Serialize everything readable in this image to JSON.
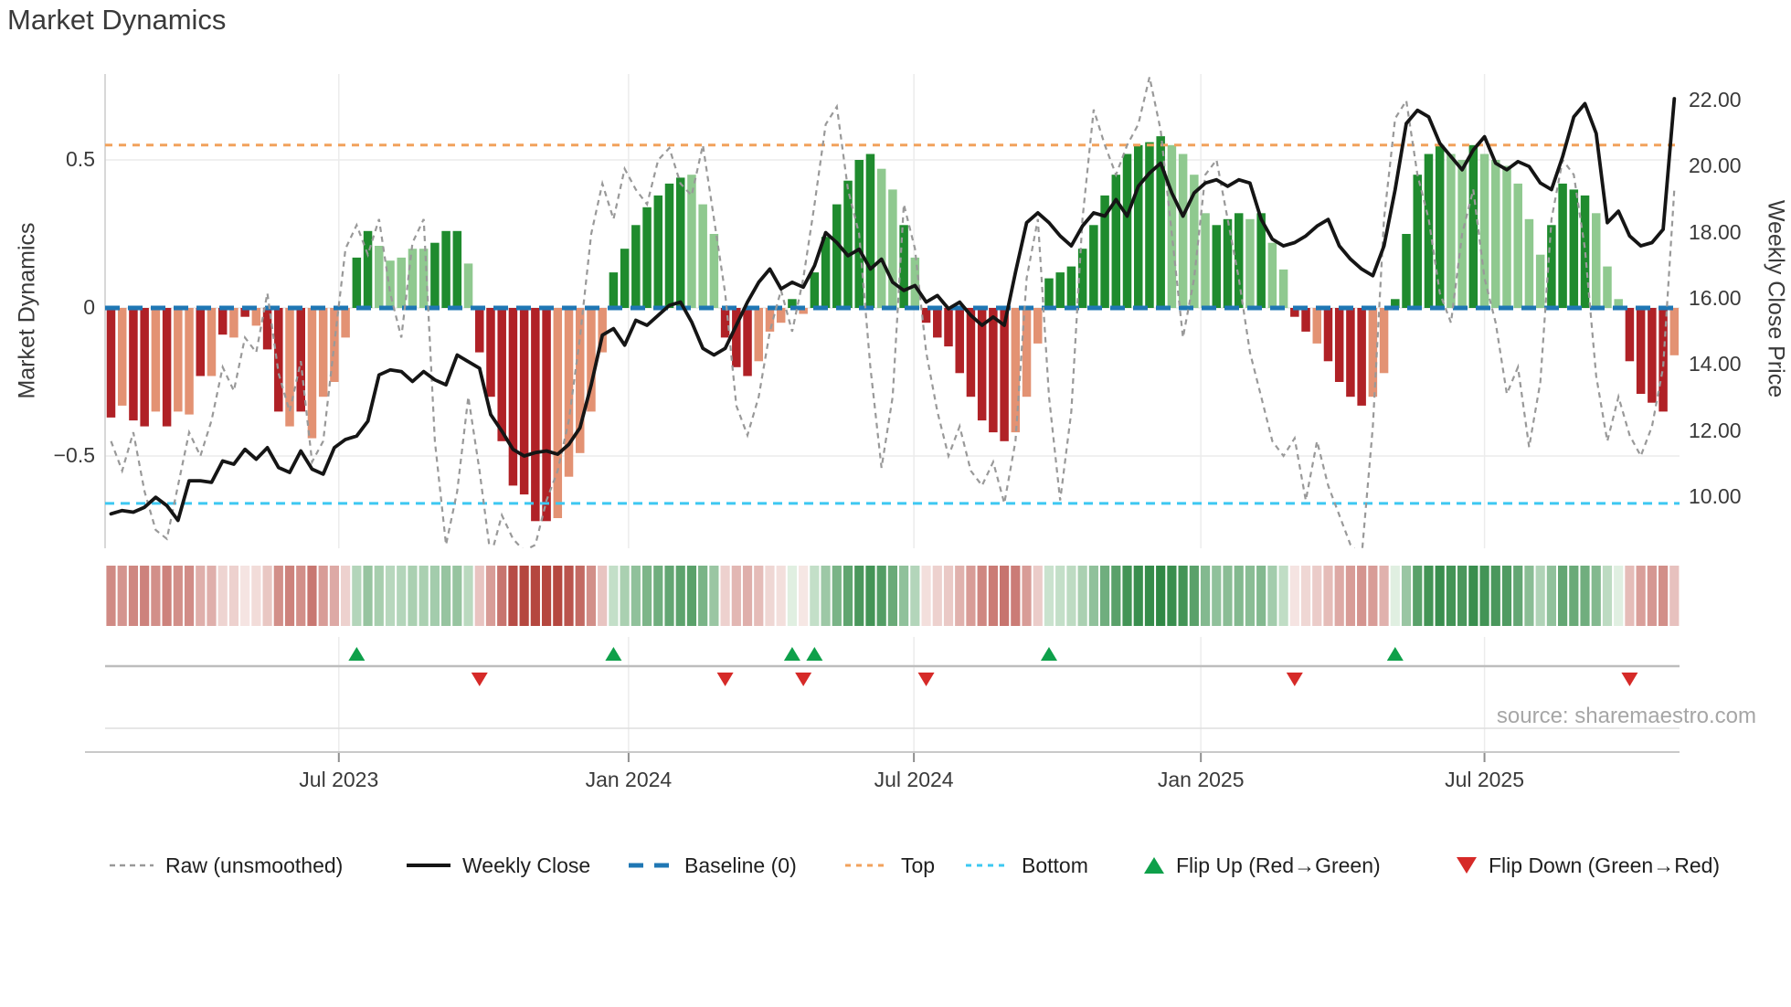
{
  "title": "Market Dynamics",
  "left_axis": {
    "label": "Market Dynamics",
    "ticks": [
      "0.5",
      "0",
      "−0.5"
    ]
  },
  "right_axis": {
    "label": "Weekly Close Price",
    "ticks": [
      "22.00",
      "20.00",
      "18.00",
      "16.00",
      "14.00",
      "12.00",
      "10.00"
    ]
  },
  "source": "source: sharemaestro.com",
  "colors": {
    "bar_pos_dark": "#1f8b2e",
    "bar_pos_light": "#8fc98f",
    "bar_neg_dark": "#b02126",
    "bar_neg_light": "#e39273",
    "baseline": "#1f77b4",
    "top_line": "#f2a25c",
    "bottom_line": "#3dc8f2",
    "raw_line": "#999999",
    "price_line": "#151515",
    "flip_up": "#0ea04a",
    "flip_down": "#d62a28",
    "grid": "#ececec",
    "spine": "#cccccc",
    "marker_rail": "#bdbdbd",
    "axis_line": "#c9c9c9"
  },
  "legend": [
    {
      "label": "Raw (unsmoothed)",
      "swatch": "dash-gray"
    },
    {
      "label": "Weekly Close",
      "swatch": "solid-black"
    },
    {
      "label": "Baseline (0)",
      "swatch": "dash-blue"
    },
    {
      "label": "Top",
      "swatch": "dot-orange"
    },
    {
      "label": "Bottom",
      "swatch": "dot-cyan"
    },
    {
      "label": "Flip Up (Red→Green)",
      "swatch": "tri-up"
    },
    {
      "label": "Flip Down (Green→Red)",
      "swatch": "tri-down"
    }
  ],
  "chart_data": {
    "type": "bar",
    "title": "Market Dynamics",
    "ylabel_left": "Market Dynamics",
    "ylabel_right": "Weekly Close Price",
    "ylim_left": [
      -0.79,
      0.79
    ],
    "ylim_right": [
      8.5,
      22.8
    ],
    "baseline": 0,
    "top_threshold": 0.55,
    "bottom_threshold": -0.66,
    "x_ticks": [
      {
        "label": "Jul 2023",
        "week": 20.4
      },
      {
        "label": "Jan 2024",
        "week": 46.35
      },
      {
        "label": "Jul 2024",
        "week": 71.9
      },
      {
        "label": "Jan 2025",
        "week": 97.6
      },
      {
        "label": "Jul 2025",
        "week": 123.0
      }
    ],
    "oscillator_values": [
      -0.37,
      -0.33,
      -0.38,
      -0.4,
      -0.35,
      -0.4,
      -0.35,
      -0.36,
      -0.23,
      -0.23,
      -0.09,
      -0.1,
      -0.03,
      -0.06,
      -0.14,
      -0.35,
      -0.4,
      -0.35,
      -0.44,
      -0.3,
      -0.25,
      -0.1,
      0.17,
      0.26,
      0.21,
      0.16,
      0.17,
      0.2,
      0.2,
      0.22,
      0.26,
      0.26,
      0.15,
      -0.15,
      -0.3,
      -0.45,
      -0.6,
      -0.63,
      -0.72,
      -0.72,
      -0.71,
      -0.57,
      -0.49,
      -0.35,
      -0.15,
      0.12,
      0.2,
      0.28,
      0.34,
      0.38,
      0.42,
      0.44,
      0.45,
      0.35,
      0.25,
      -0.1,
      -0.2,
      -0.23,
      -0.18,
      -0.08,
      -0.05,
      0.03,
      -0.02,
      0.12,
      0.24,
      0.35,
      0.43,
      0.5,
      0.52,
      0.47,
      0.4,
      0.28,
      0.17,
      -0.05,
      -0.1,
      -0.13,
      -0.22,
      -0.3,
      -0.38,
      -0.42,
      -0.45,
      -0.42,
      -0.3,
      -0.12,
      0.1,
      0.12,
      0.14,
      0.2,
      0.28,
      0.38,
      0.45,
      0.52,
      0.55,
      0.56,
      0.58,
      0.55,
      0.52,
      0.45,
      0.32,
      0.28,
      0.3,
      0.32,
      0.3,
      0.32,
      0.22,
      0.13,
      -0.03,
      -0.08,
      -0.12,
      -0.18,
      -0.25,
      -0.3,
      -0.33,
      -0.3,
      -0.22,
      0.03,
      0.25,
      0.45,
      0.52,
      0.55,
      0.52,
      0.5,
      0.55,
      0.52,
      0.5,
      0.48,
      0.42,
      0.3,
      0.18,
      0.28,
      0.42,
      0.4,
      0.38,
      0.32,
      0.14,
      0.03,
      -0.18,
      -0.29,
      -0.32,
      -0.35,
      -0.16
    ],
    "oscillator_shades": "dlddldlldldldlddldllllddllllldddldddddddllllldddddddllldddllldlddddddlldlddddddddllldddddddddddlllldddldllddlddddlldddddlldllllllddddlllddddl",
    "weekly_close": [
      9.5,
      9.6,
      9.55,
      9.7,
      10.0,
      9.75,
      9.3,
      10.5,
      10.5,
      10.45,
      11.1,
      11.0,
      11.45,
      11.15,
      11.5,
      10.9,
      10.75,
      11.4,
      10.85,
      10.7,
      11.5,
      11.75,
      11.85,
      12.3,
      13.7,
      13.85,
      13.8,
      13.5,
      13.8,
      13.55,
      13.4,
      14.3,
      14.1,
      13.9,
      12.5,
      12.0,
      11.45,
      11.25,
      11.35,
      11.4,
      11.3,
      11.6,
      12.1,
      13.4,
      14.9,
      15.1,
      14.6,
      15.35,
      15.2,
      15.5,
      15.8,
      15.9,
      15.3,
      14.5,
      14.3,
      14.5,
      15.2,
      15.9,
      16.5,
      16.9,
      16.3,
      16.5,
      16.35,
      17.0,
      18.0,
      17.7,
      17.3,
      17.5,
      16.9,
      17.2,
      16.5,
      16.25,
      16.4,
      15.9,
      16.1,
      15.7,
      15.9,
      15.5,
      15.2,
      15.45,
      15.2,
      16.8,
      18.3,
      18.6,
      18.3,
      17.9,
      17.6,
      18.2,
      18.6,
      18.5,
      19.0,
      18.5,
      19.4,
      19.8,
      20.1,
      19.2,
      18.5,
      19.2,
      19.5,
      19.6,
      19.4,
      19.6,
      19.5,
      18.4,
      17.8,
      17.6,
      17.7,
      17.9,
      18.2,
      18.4,
      17.6,
      17.2,
      16.9,
      16.7,
      17.6,
      19.3,
      21.3,
      21.7,
      21.5,
      20.7,
      20.3,
      19.9,
      20.5,
      20.9,
      20.1,
      19.9,
      20.15,
      20.0,
      19.5,
      19.3,
      20.3,
      21.5,
      21.9,
      21.0,
      18.3,
      18.65,
      17.9,
      17.6,
      17.7,
      18.1,
      22.05
    ],
    "raw_unsmoothed": [
      -0.45,
      -0.55,
      -0.42,
      -0.62,
      -0.75,
      -0.78,
      -0.6,
      -0.42,
      -0.5,
      -0.38,
      -0.2,
      -0.28,
      -0.1,
      -0.15,
      0.05,
      -0.22,
      -0.35,
      -0.18,
      -0.52,
      -0.45,
      -0.12,
      0.2,
      0.28,
      0.18,
      0.3,
      0.05,
      -0.1,
      0.22,
      0.3,
      -0.45,
      -0.8,
      -0.62,
      -0.3,
      -0.55,
      -0.84,
      -0.7,
      -0.78,
      -0.82,
      -0.8,
      -0.65,
      -0.55,
      -0.38,
      -0.1,
      0.25,
      0.42,
      0.3,
      0.47,
      0.4,
      0.35,
      0.5,
      0.54,
      0.42,
      0.38,
      0.55,
      0.3,
      0.05,
      -0.33,
      -0.43,
      -0.3,
      -0.08,
      0.06,
      -0.08,
      0.1,
      0.35,
      0.62,
      0.68,
      0.4,
      0.25,
      -0.2,
      -0.54,
      -0.3,
      0.35,
      0.2,
      -0.15,
      -0.35,
      -0.5,
      -0.4,
      -0.55,
      -0.6,
      -0.52,
      -0.66,
      -0.45,
      0.1,
      0.3,
      -0.3,
      -0.65,
      -0.35,
      0.3,
      0.67,
      0.55,
      0.45,
      0.55,
      0.62,
      0.78,
      0.6,
      0.25,
      -0.1,
      0.1,
      0.45,
      0.5,
      0.3,
      0.1,
      -0.15,
      -0.3,
      -0.45,
      -0.5,
      -0.44,
      -0.65,
      -0.45,
      -0.6,
      -0.7,
      -0.8,
      -0.84,
      -0.4,
      0.3,
      0.64,
      0.7,
      0.45,
      0.3,
      0.05,
      -0.05,
      0.25,
      0.4,
      0.1,
      -0.05,
      -0.29,
      -0.2,
      -0.47,
      -0.25,
      0.3,
      0.5,
      0.45,
      0.2,
      -0.23,
      -0.45,
      -0.3,
      -0.43,
      -0.5,
      -0.4,
      -0.2,
      0.4
    ],
    "flip_up_weeks": [
      22,
      45,
      61,
      63,
      84,
      115
    ],
    "flip_down_weeks": [
      33,
      55,
      62,
      73,
      106,
      136
    ],
    "legend_position": "bottom",
    "grid": true
  }
}
